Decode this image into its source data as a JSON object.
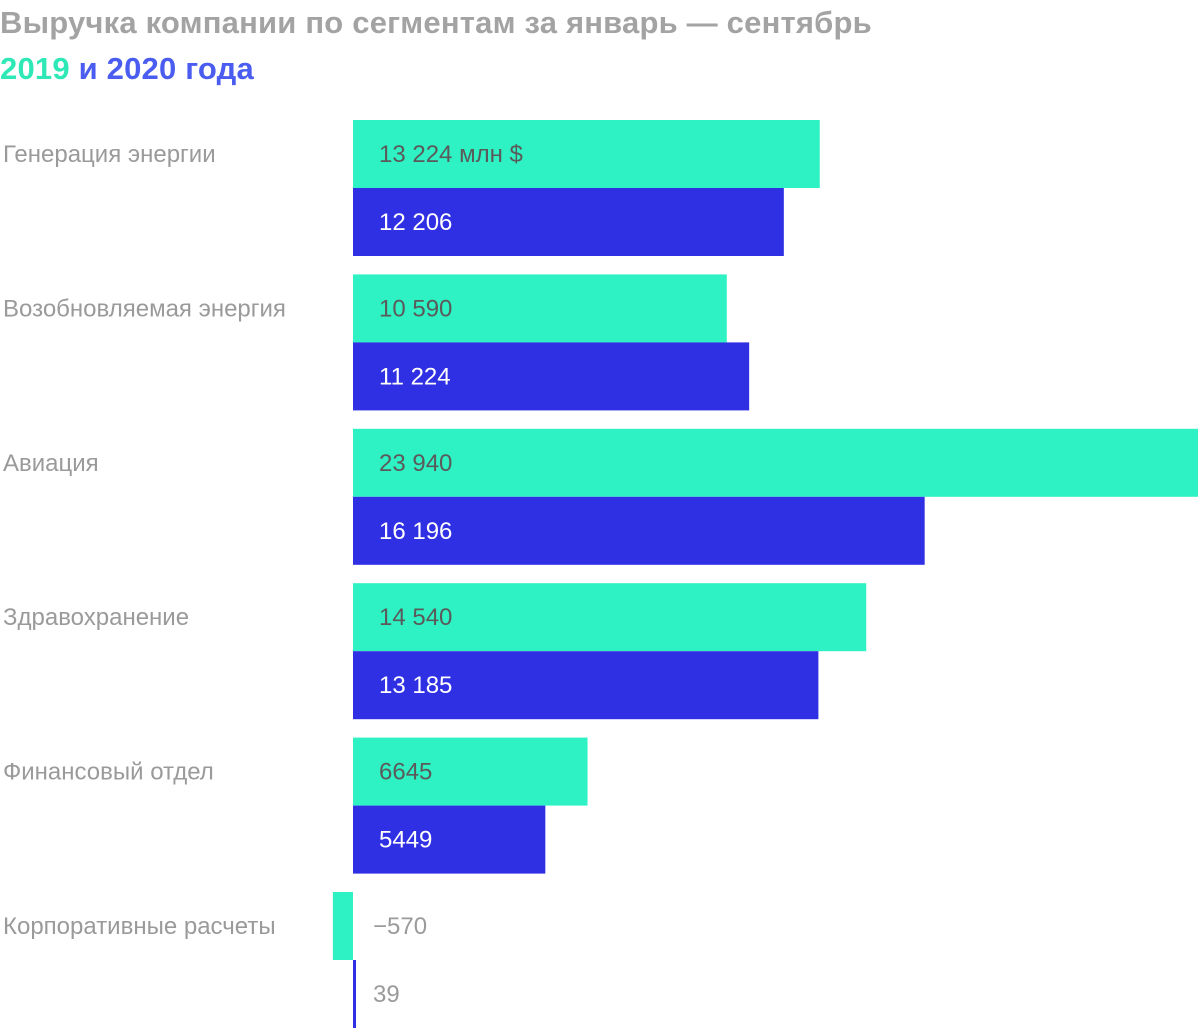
{
  "title": {
    "line1": "Выручка компании по сегментам за январь — сентябрь",
    "year_a": "2019",
    "connector": " и ",
    "year_b": "2020 года"
  },
  "colors": {
    "series_2019": "#2ef2c4",
    "series_2020": "#2f2fe4",
    "title_gray": "#a3a3a3",
    "label_gray": "#9a9a9a",
    "value_inside_on_teal": "#5a5a5a",
    "value_inside_on_blue": "#ffffff"
  },
  "chart_data": {
    "type": "bar",
    "orientation": "horizontal",
    "categories": [
      "Генерация энергии",
      "Возобновляемая энергия",
      "Авиация",
      "Здравохранение",
      "Финансовый отдел",
      "Корпоративные расчеты"
    ],
    "series": [
      {
        "name": "2019",
        "color": "#2ef2c4",
        "values": [
          13224,
          10590,
          23940,
          14540,
          6645,
          -570
        ],
        "labels": [
          "13 224 млн $",
          "10 590",
          "23 940",
          "14 540",
          "6645",
          "−570"
        ]
      },
      {
        "name": "2020",
        "color": "#2f2fe4",
        "values": [
          12206,
          11224,
          16196,
          13185,
          5449,
          39
        ],
        "labels": [
          "12 206",
          "11 224",
          "16 196",
          "13 185",
          "5449",
          "39"
        ]
      }
    ],
    "value_unit": "млн $",
    "grid": false,
    "legend": "none (years in title)"
  }
}
